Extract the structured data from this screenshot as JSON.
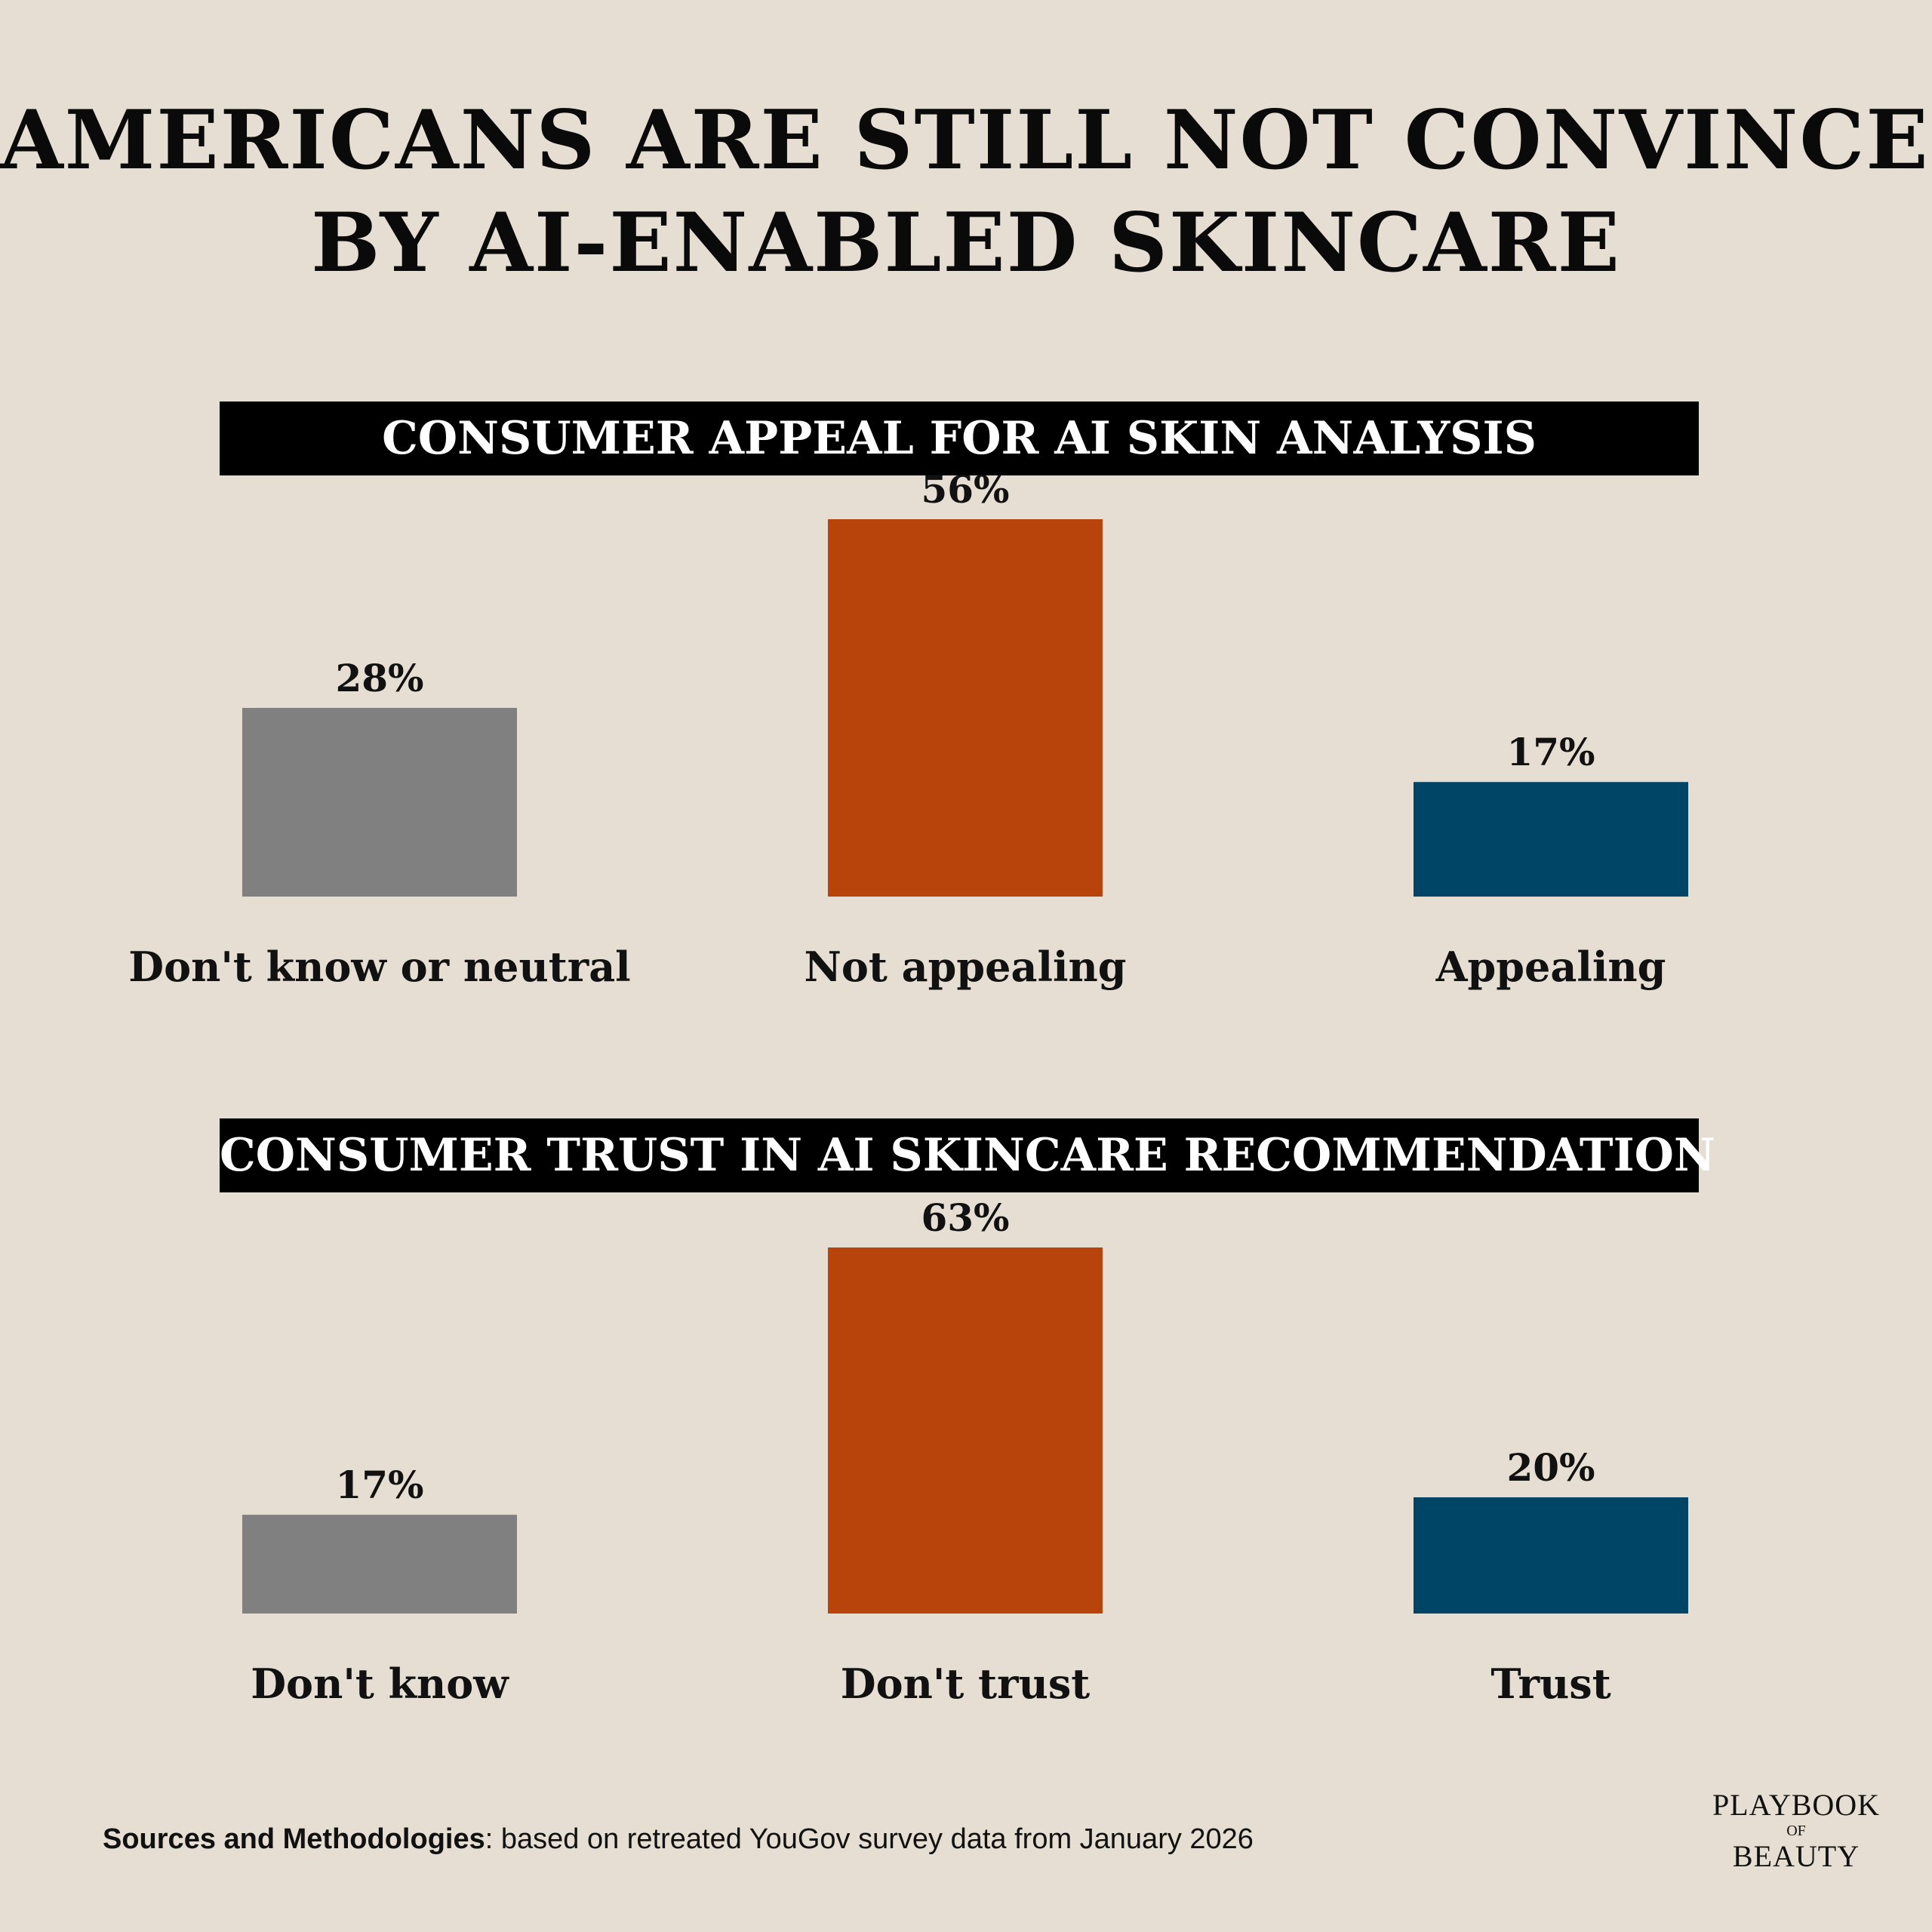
{
  "title": {
    "line1": "AMERICANS ARE STILL NOT CONVINCED",
    "line2": "BY AI-ENABLED SKINCARE"
  },
  "colors": {
    "background": "#e6ded2",
    "neutral": "#808080",
    "negative": "#b8440c",
    "positive": "#004466",
    "header_bg": "#000000",
    "header_text": "#ffffff"
  },
  "chart_data": [
    {
      "type": "bar",
      "title": "CONSUMER APPEAL FOR AI SKIN ANALYSIS",
      "categories": [
        "Don't know or neutral",
        "Not appealing",
        "Appealing"
      ],
      "values": [
        28,
        56,
        17
      ],
      "value_labels": [
        "28%",
        "56%",
        "17%"
      ],
      "colors": [
        "#808080",
        "#b8440c",
        "#004466"
      ],
      "ylim": [
        0,
        56
      ],
      "grid": false,
      "xlabel": "",
      "ylabel": ""
    },
    {
      "type": "bar",
      "title": "CONSUMER TRUST IN AI SKINCARE RECOMMENDATION",
      "categories": [
        "Don't know",
        "Don't trust",
        "Trust"
      ],
      "values": [
        17,
        63,
        20
      ],
      "value_labels": [
        "17%",
        "63%",
        "20%"
      ],
      "colors": [
        "#808080",
        "#b8440c",
        "#004466"
      ],
      "ylim": [
        0,
        63
      ],
      "grid": false,
      "xlabel": "",
      "ylabel": ""
    }
  ],
  "footer": {
    "sources_label": "Sources and Methodologies",
    "sources_text": ": based on retreated YouGov survey data from January 2026"
  },
  "logo": {
    "line1": "PLAYBOOK",
    "line2": "OF",
    "line3": "BEAUTY"
  }
}
